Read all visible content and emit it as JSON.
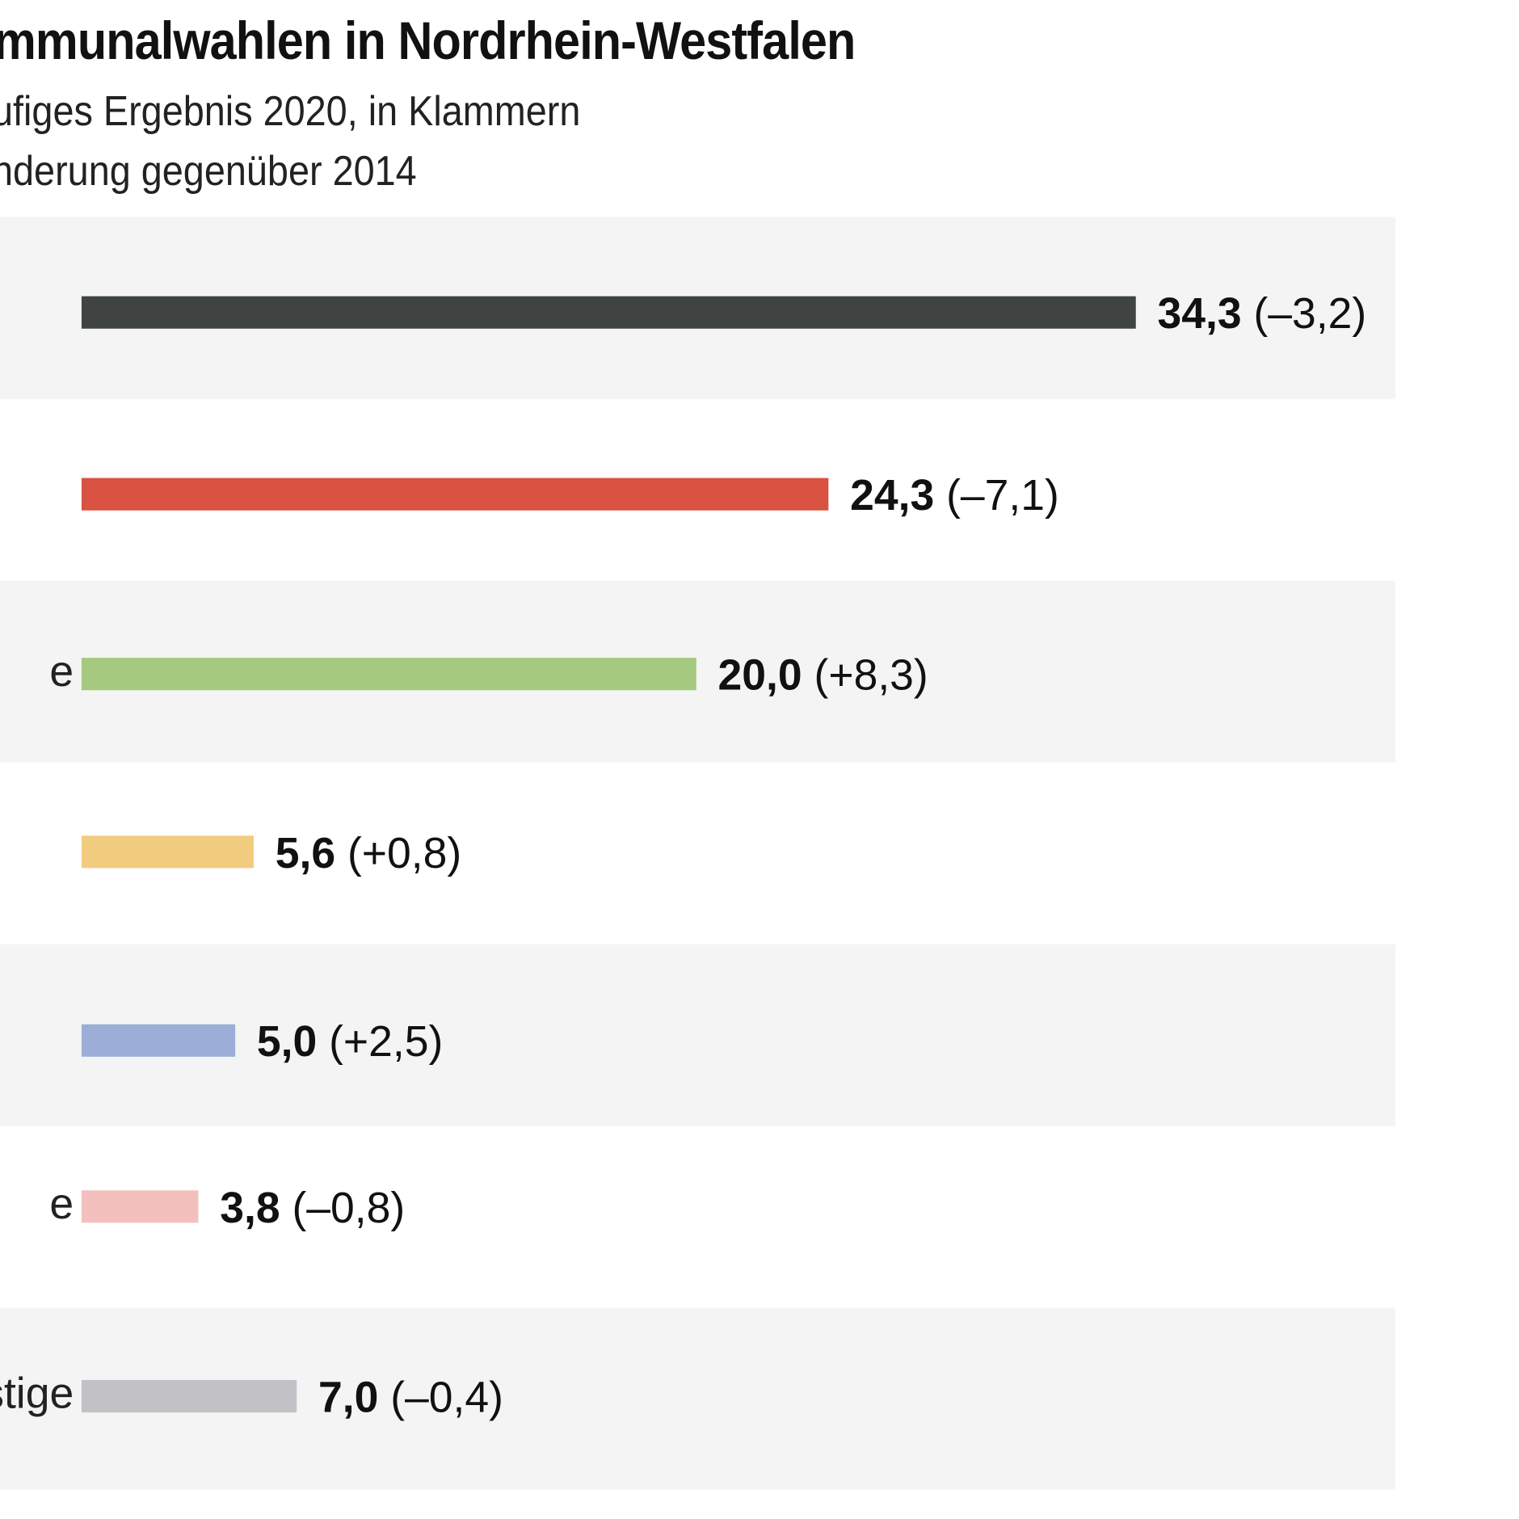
{
  "chart_data": {
    "type": "bar",
    "orientation": "horizontal",
    "title": "mmunalwahlen in Nordrhein-Westfalen",
    "subtitle_lines": [
      "ufiges Ergebnis 2020, in Klammern",
      "nderung gegenüber 2014"
    ],
    "categories": [
      "",
      "",
      "e",
      "",
      "",
      "e",
      "stige"
    ],
    "values": [
      34.3,
      24.3,
      20.0,
      5.6,
      5.0,
      3.8,
      7.0
    ],
    "value_labels": [
      "34,3",
      "24,3",
      "20,0",
      "5,6",
      "5,0",
      "3,8",
      "7,0"
    ],
    "change_labels": [
      "(–3,2)",
      "(–7,1)",
      "(+8,3)",
      "(+0,8)",
      "(+2,5)",
      "(–0,8)",
      "(–0,4)"
    ],
    "colors": [
      "#3f4443",
      "#d95242",
      "#a5c97e",
      "#f2cc7e",
      "#9caed8",
      "#f2c1be",
      "#c2c2c6"
    ],
    "row_background": "#f4f4f4",
    "xlim": [
      0,
      34.3
    ],
    "grid": false,
    "legend": "none"
  }
}
